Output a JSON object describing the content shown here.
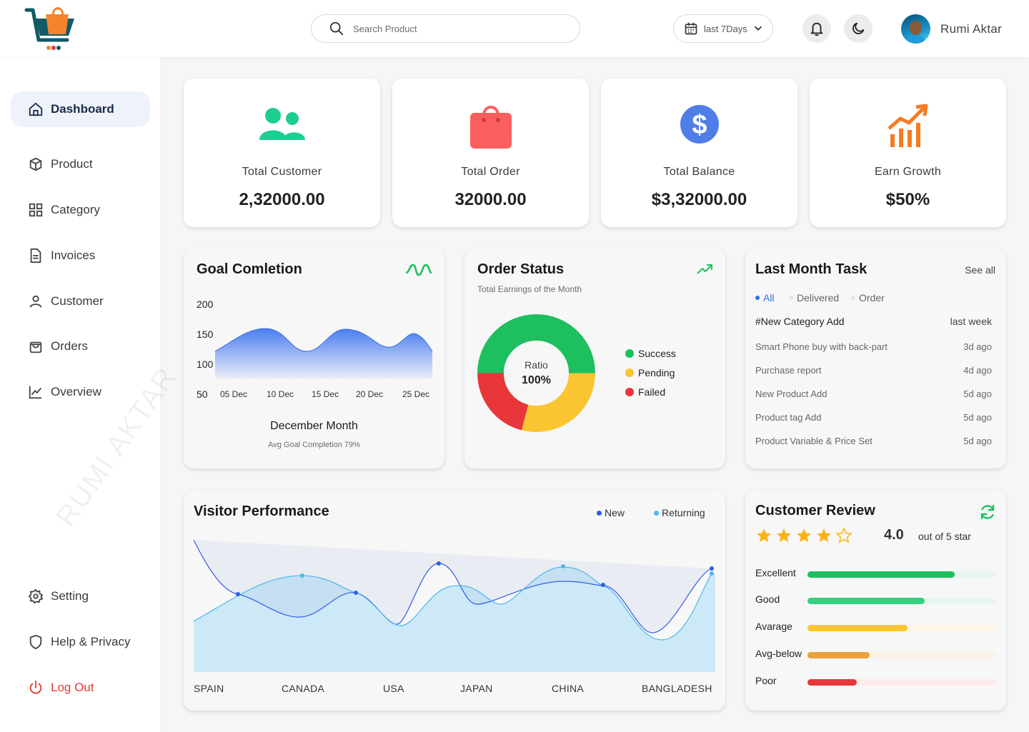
{
  "header": {
    "search_placeholder": "Search Product",
    "date_filter": "last 7Days",
    "user_name": "Rumi Aktar"
  },
  "sidebar": {
    "items": [
      {
        "label": "Dashboard",
        "icon": "home-icon",
        "active": true
      },
      {
        "label": "Product",
        "icon": "box-icon"
      },
      {
        "label": "Category",
        "icon": "grid-icon"
      },
      {
        "label": "Invoices",
        "icon": "document-icon"
      },
      {
        "label": "Customer",
        "icon": "user-icon"
      },
      {
        "label": "Orders",
        "icon": "bag-icon"
      },
      {
        "label": "Overview",
        "icon": "chart-line-icon"
      }
    ],
    "bottom": [
      {
        "label": "Setting",
        "icon": "gear-icon"
      },
      {
        "label": "Help & Privacy",
        "icon": "shield-icon"
      },
      {
        "label": "Log Out",
        "icon": "power-icon"
      }
    ],
    "watermark": "RUMI AKTAR"
  },
  "stats": [
    {
      "label": "Total Customer",
      "value": "2,32000.00",
      "icon": "users-icon",
      "color": "#1ccf8f"
    },
    {
      "label": "Total Order",
      "value": "32000.00",
      "icon": "shopping-bag-icon",
      "color": "#fb5e5e"
    },
    {
      "label": "Total Balance",
      "value": "$3,32000.00",
      "icon": "dollar-icon",
      "color": "#4f7ee8"
    },
    {
      "label": "Earn Growth",
      "value": "$50%",
      "icon": "growth-chart-icon",
      "color": "#f77b22"
    }
  ],
  "goal": {
    "title": "Goal Comletion",
    "y_ticks": [
      "200",
      "150",
      "100",
      "50"
    ],
    "x_ticks": [
      "05 Dec",
      "10 Dec",
      "15 Dec",
      "20 Dec",
      "25 Dec"
    ],
    "caption": "December Month",
    "sub": "Avg Goal Completion 79%"
  },
  "order_status": {
    "title": "Order Status",
    "subtitle": "Total Earnings of  the Month",
    "center_label": "Ratio",
    "center_value": "100%",
    "legend": [
      {
        "label": "Success",
        "color": "#1dbf5e"
      },
      {
        "label": "Pending",
        "color": "#fbc531"
      },
      {
        "label": "Failed",
        "color": "#e8363a"
      }
    ]
  },
  "tasks": {
    "title": "Last Month Task",
    "see_all": "See all",
    "filters": [
      "All",
      "Delivered",
      "Order"
    ],
    "header_left": "#New Category Add",
    "header_right": "last week",
    "rows": [
      {
        "name": "Smart Phone buy with back-part",
        "time": "3d ago"
      },
      {
        "name": "Purchase report",
        "time": "4d ago"
      },
      {
        "name": "New Product Add",
        "time": "5d ago"
      },
      {
        "name": "Product tag Add",
        "time": "5d ago"
      },
      {
        "name": "Product Variable & Price Set",
        "time": "5d ago"
      }
    ]
  },
  "visitor": {
    "title": "Visitor Performance",
    "legend_new": "New",
    "legend_returning": "Returning",
    "countries": [
      "SPAIN",
      "CANADA",
      "USA",
      "JAPAN",
      "CHINA",
      "BANGLADESH"
    ]
  },
  "review": {
    "title": "Customer Review",
    "score": "4.0",
    "out_of": "out of 5 star",
    "stars": 4,
    "rows": [
      {
        "label": "Excellent",
        "pct": 0.78,
        "color": "#1dbf5e",
        "bg": "#e8f7ee"
      },
      {
        "label": "Good",
        "pct": 0.62,
        "color": "#35d07f",
        "bg": "#e8f7ee"
      },
      {
        "label": "Avarage",
        "pct": 0.53,
        "color": "#fbc531",
        "bg": "#fdf6e6"
      },
      {
        "label": "Avg-below",
        "pct": 0.33,
        "color": "#e9a23b",
        "bg": "#fcf1e6"
      },
      {
        "label": "Poor",
        "pct": 0.26,
        "color": "#e8363a",
        "bg": "#fdeaea"
      }
    ]
  }
}
